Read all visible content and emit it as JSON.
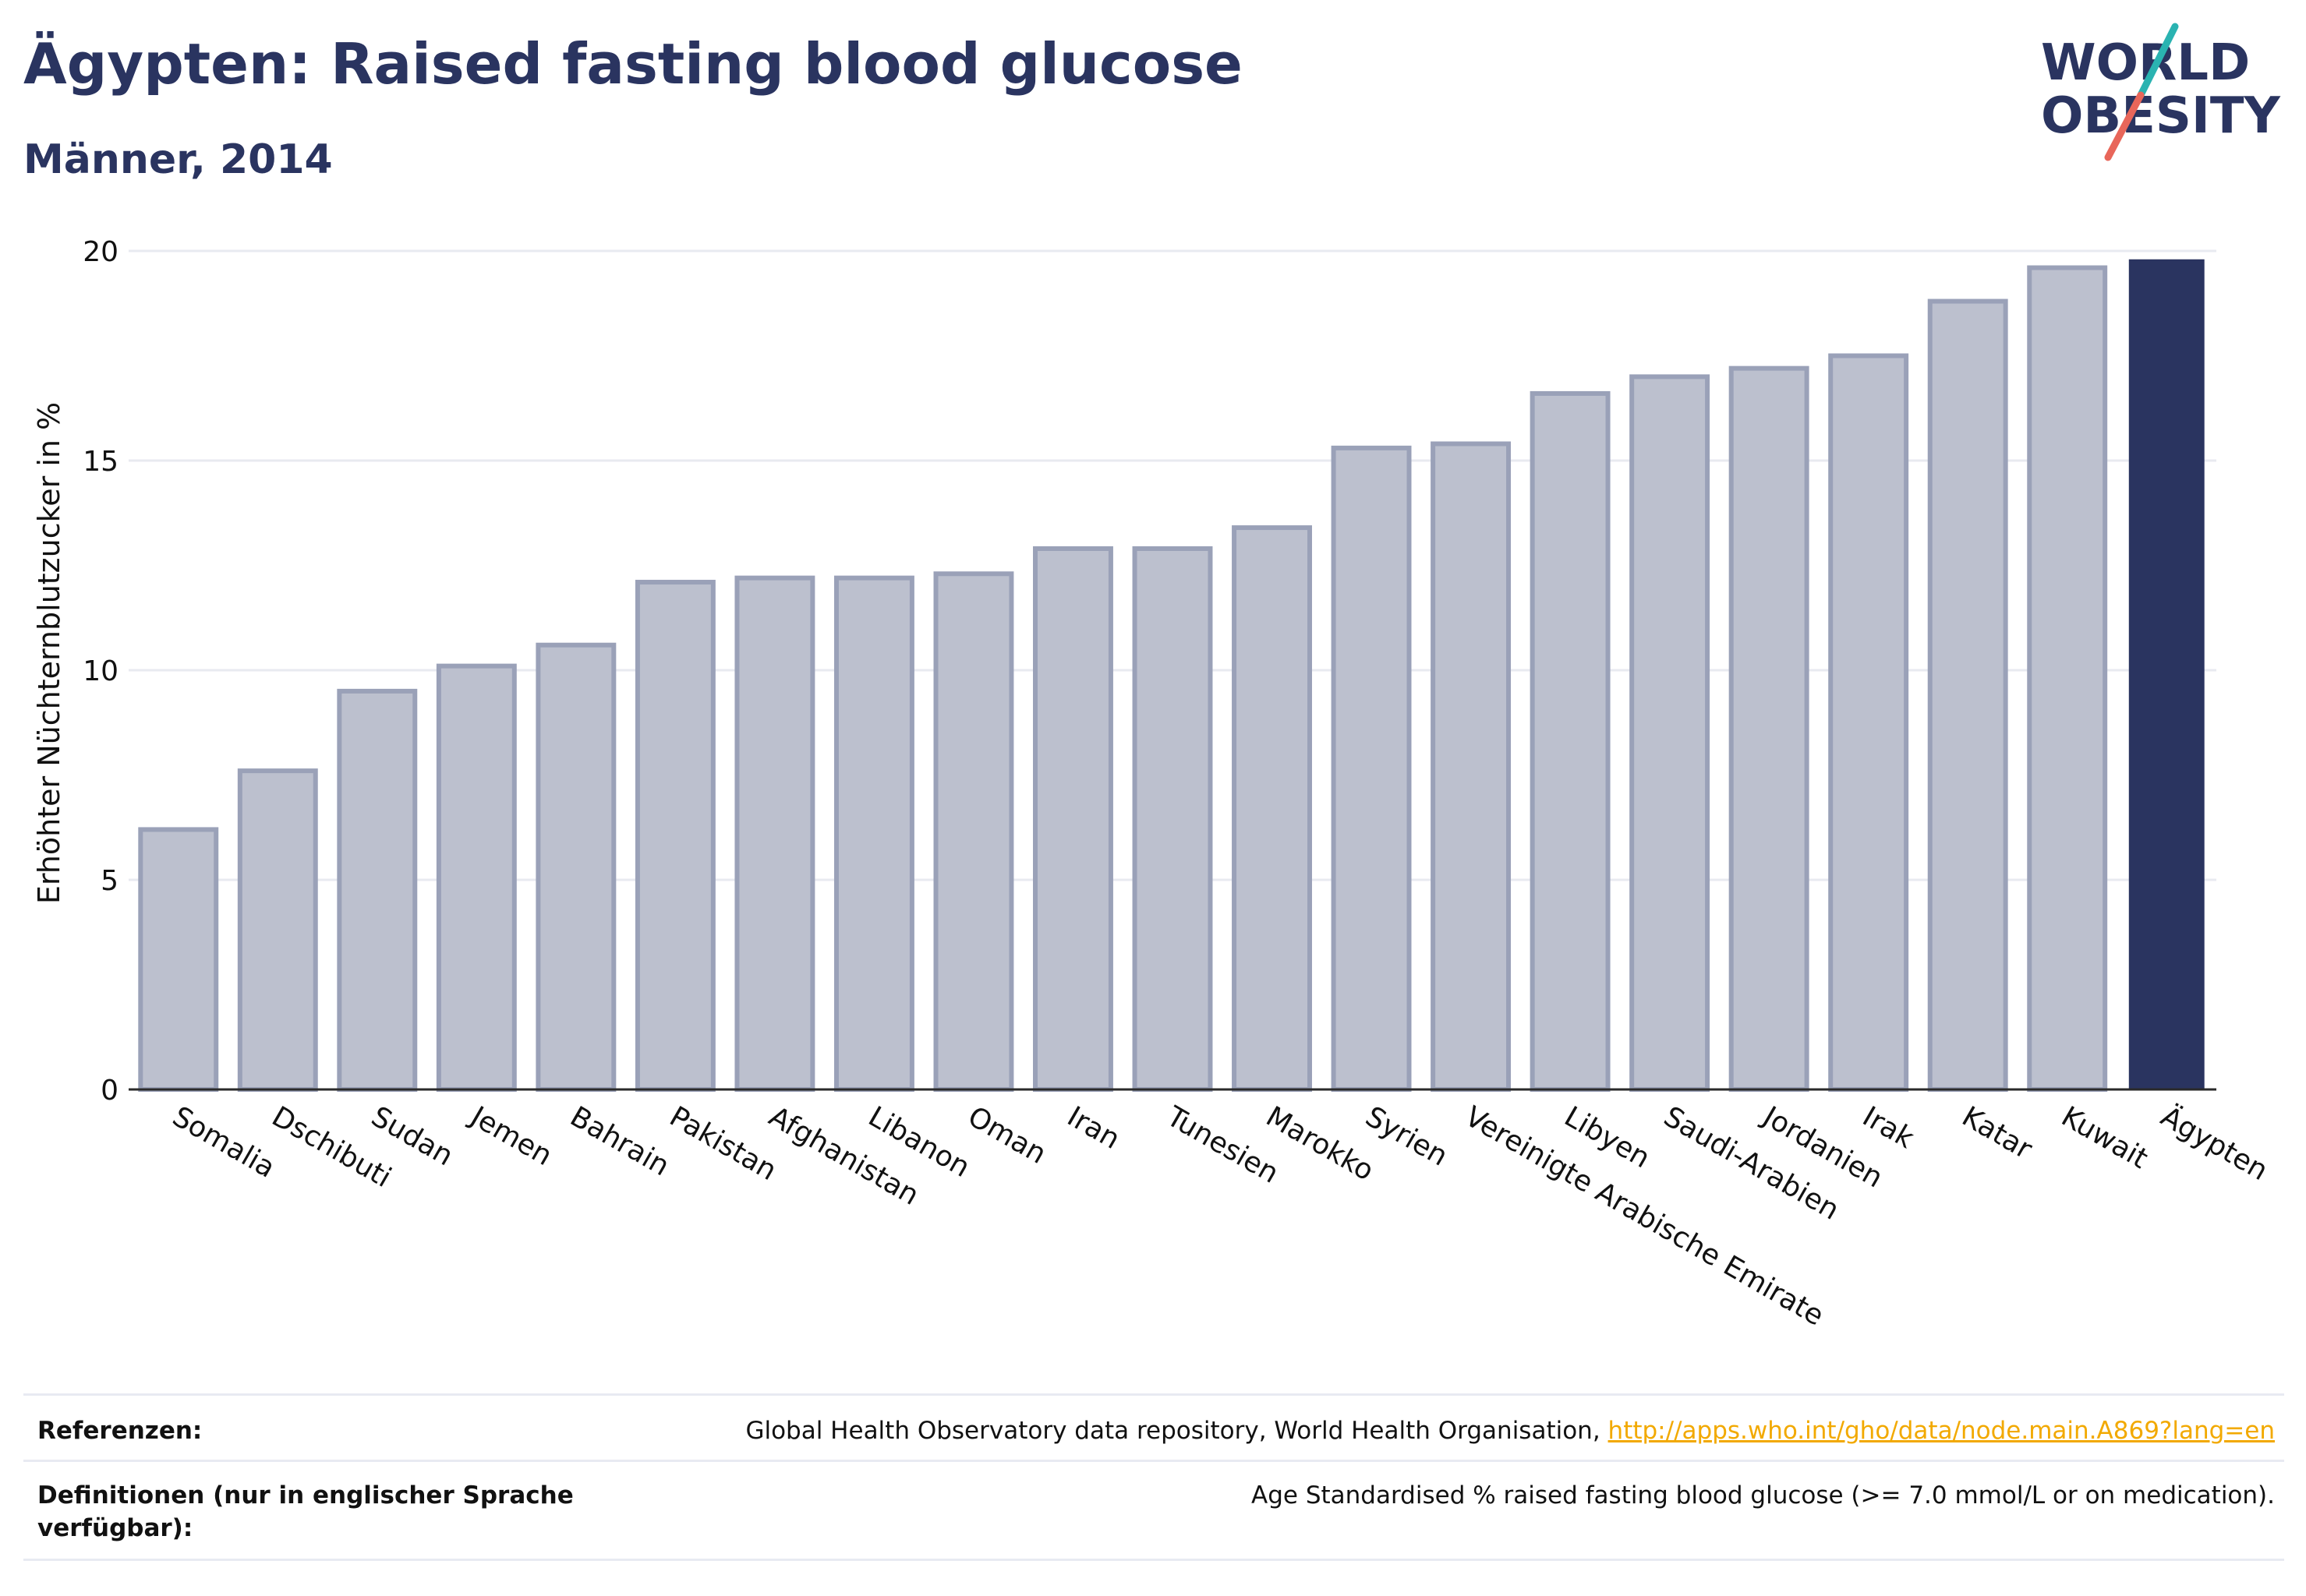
{
  "header": {
    "title": "Ägypten: Raised fasting blood glucose",
    "subtitle": "Männer, 2014"
  },
  "logo": {
    "line1": "WORLD",
    "line2": "OBESITY",
    "colors": {
      "text": "#2a3460",
      "accent_teal": "#2ab3b1",
      "accent_coral": "#e8665a"
    }
  },
  "chart_data": {
    "type": "bar",
    "ylabel": "Erhöhter Nüchternblutzucker in %",
    "xlabel": "",
    "ylim": [
      0,
      20
    ],
    "yticks": [
      0,
      5,
      10,
      15,
      20
    ],
    "grid": true,
    "categories": [
      "Somalia",
      "Dschibuti",
      "Sudan",
      "Jemen",
      "Bahrain",
      "Pakistan",
      "Afghanistan",
      "Libanon",
      "Oman",
      "Iran",
      "Tunesien",
      "Marokko",
      "Syrien",
      "Vereinigte Arabische Emirate",
      "Libyen",
      "Saudi-Arabien",
      "Jordanien",
      "Irak",
      "Katar",
      "Kuwait",
      "Ägypten"
    ],
    "values": [
      6.2,
      7.6,
      9.5,
      10.1,
      10.6,
      12.1,
      12.2,
      12.2,
      12.3,
      12.9,
      12.9,
      13.4,
      15.3,
      15.4,
      16.6,
      17.0,
      17.2,
      17.5,
      18.8,
      19.6,
      19.8
    ],
    "highlight": "Ägypten",
    "colors": {
      "bar": "#bcc0ce",
      "bar_border": "#9aa1b8",
      "highlight": "#2a3460",
      "grid": "#e8eaf0",
      "axis": "#2a2a2a"
    }
  },
  "footer": {
    "references_label": "Referenzen:",
    "references_text": "Global Health Observatory data repository, World Health Organisation,",
    "references_link": "http://apps.who.int/gho/data/node.main.A869?lang=en",
    "definitions_label": "Definitionen (nur in englischer Sprache verfügbar):",
    "definitions_text": "Age Standardised % raised fasting blood glucose (>= 7.0 mmol/L or on medication)."
  }
}
